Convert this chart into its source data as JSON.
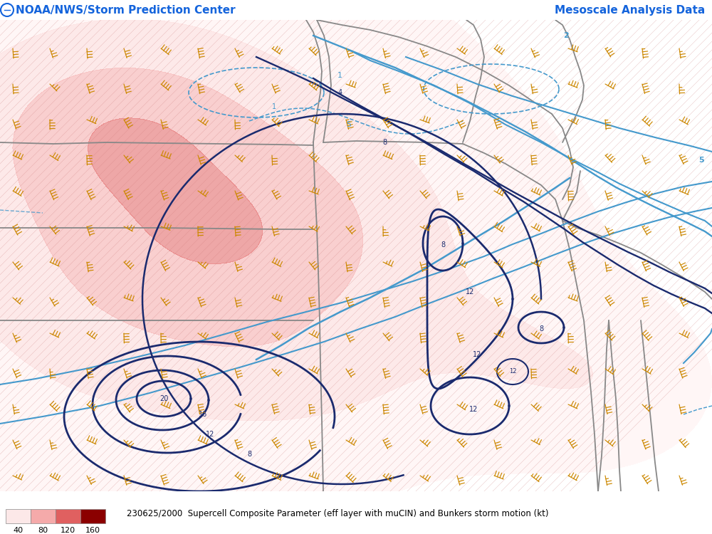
{
  "title_left": "NOAA/NWS/Storm Prediction Center",
  "title_right": "Mesoscale Analysis Data",
  "bottom_text": "230625/2000  Supercell Composite Parameter (eff layer with muCIN) and Bunkers storm motion (kt)",
  "title_fontsize": 11,
  "title_color": "#1464DC",
  "background_color": "#ffffff",
  "map_bg": "#faf8f5",
  "legend_values": [
    40,
    80,
    120,
    160
  ],
  "legend_colors": [
    "#fce8e8",
    "#f5aaaa",
    "#e06060",
    "#8b0000"
  ],
  "contour_blue_light": "#4499cc",
  "contour_blue_dark": "#1a2a6e",
  "state_border_color": "#888888",
  "wind_barb_color_orange": "#cc8800",
  "figsize": [
    10.0,
    7.5
  ],
  "dpi": 100,
  "scp_pink_color": "#f5c0c0",
  "scp_red_color": "#e08080",
  "scp_darkred_color": "#c04040",
  "hatch_color": "#d08080"
}
